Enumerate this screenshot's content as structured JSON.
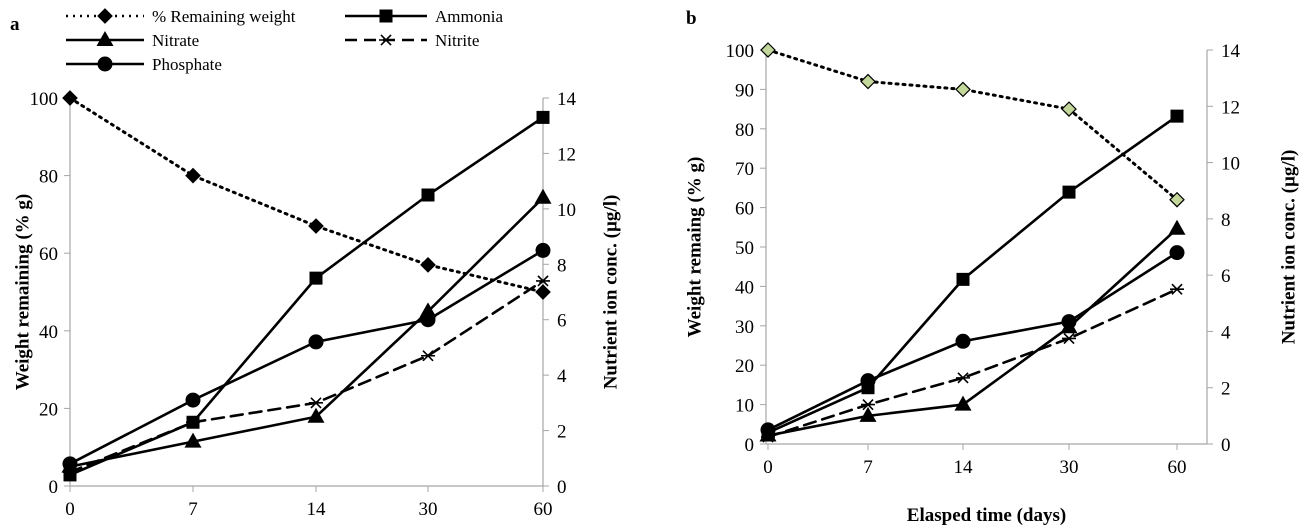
{
  "legend": [
    {
      "key": "remaining",
      "label": "% Remaining weight"
    },
    {
      "key": "ammonia",
      "label": "Ammonia"
    },
    {
      "key": "nitrate",
      "label": "Nitrate"
    },
    {
      "key": "nitrite",
      "label": "Nitrite"
    },
    {
      "key": "phosphate",
      "label": "Phosphate"
    }
  ],
  "chart_data": [
    {
      "type": "line",
      "panel": "a",
      "categories": [
        "0",
        "7",
        "14",
        "30",
        "60"
      ],
      "xlabel": "",
      "ylabel": "Weight remaining (% g)",
      "ylim": [
        0,
        100
      ],
      "yticks": [
        0,
        20,
        40,
        60,
        80,
        100
      ],
      "y2label": "Nutrient ion conc. (µg/l)",
      "y2lim": [
        0,
        14
      ],
      "y2ticks": [
        0,
        2,
        4,
        6,
        8,
        10,
        12,
        14
      ],
      "grid": false,
      "legend_position": "top-left",
      "series": [
        {
          "name": "% Remaining weight",
          "key": "remaining",
          "axis": "left",
          "values": [
            100,
            80,
            67,
            57,
            50
          ]
        },
        {
          "name": "Ammonia",
          "key": "ammonia",
          "axis": "right",
          "values": [
            0.4,
            2.3,
            7.5,
            10.5,
            13.3
          ]
        },
        {
          "name": "Nitrate",
          "key": "nitrate",
          "axis": "right",
          "values": [
            0.7,
            1.6,
            2.5,
            6.3,
            10.4
          ]
        },
        {
          "name": "Nitrite",
          "key": "nitrite",
          "axis": "right",
          "values": [
            0.5,
            2.3,
            3.0,
            4.7,
            7.4
          ]
        },
        {
          "name": "Phosphate",
          "key": "phosphate",
          "axis": "right",
          "values": [
            0.8,
            3.1,
            5.2,
            6.0,
            8.5
          ]
        }
      ]
    },
    {
      "type": "line",
      "panel": "b",
      "categories": [
        "0",
        "7",
        "14",
        "30",
        "60"
      ],
      "xlabel": "Elasped time (days)",
      "ylabel": "Weight remaing (% g)",
      "ylim": [
        0,
        100
      ],
      "yticks": [
        0,
        10,
        20,
        30,
        40,
        50,
        60,
        70,
        80,
        90,
        100
      ],
      "y2label": "Nutrient ion conc. (µg/l)",
      "y2lim": [
        0,
        14
      ],
      "y2ticks": [
        0,
        2,
        4,
        6,
        8,
        10,
        12,
        14
      ],
      "grid": false,
      "series": [
        {
          "name": "% Remaining weight",
          "key": "remaining",
          "axis": "left",
          "values": [
            100,
            92,
            90,
            85,
            62
          ]
        },
        {
          "name": "Ammonia",
          "key": "ammonia",
          "axis": "right",
          "values": [
            0.4,
            2.0,
            5.85,
            8.95,
            11.65
          ]
        },
        {
          "name": "Nitrate",
          "key": "nitrate",
          "axis": "right",
          "values": [
            0.3,
            1.0,
            1.4,
            4.15,
            7.65
          ]
        },
        {
          "name": "Nitrite",
          "key": "nitrite",
          "axis": "right",
          "values": [
            0.25,
            1.4,
            2.35,
            3.75,
            5.5
          ]
        },
        {
          "name": "Phosphate",
          "key": "phosphate",
          "axis": "right",
          "values": [
            0.5,
            2.25,
            3.65,
            4.35,
            6.8
          ]
        }
      ]
    }
  ],
  "styles": {
    "remaining": {
      "color": "#000000",
      "dash": "dotted",
      "marker": "diamond"
    },
    "ammonia": {
      "color": "#000000",
      "dash": "solid",
      "marker": "square"
    },
    "nitrate": {
      "color": "#000000",
      "dash": "solid",
      "marker": "triangle"
    },
    "nitrite": {
      "color": "#000000",
      "dash": "dashed",
      "marker": "asterisk"
    },
    "phosphate": {
      "color": "#000000",
      "dash": "solid",
      "marker": "circle"
    },
    "axis_color": "#a6a6a6",
    "panel_b_diamond_fill": "#c4d79b"
  }
}
